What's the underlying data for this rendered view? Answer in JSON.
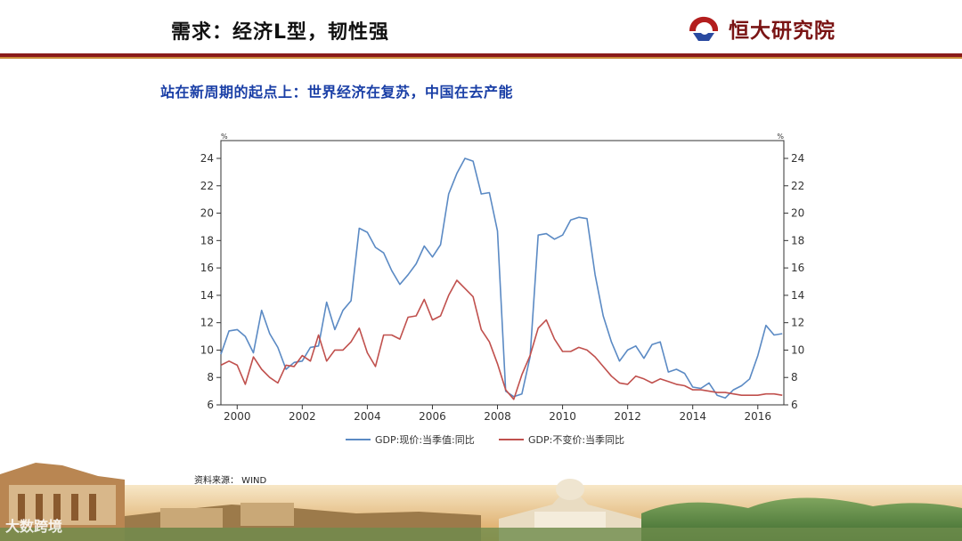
{
  "slide": {
    "title": "需求：经济L型，韧性强",
    "brand": "恒大研究院",
    "subtitle": "站在新周期的起点上：世界经济在复苏，中国在去产能",
    "source": "资料来源：  WIND",
    "watermark": "大数跨境"
  },
  "chart_data": {
    "type": "line",
    "x_unit": "year (quarterly data)",
    "y_unit_left": "%",
    "y_unit_right": "%",
    "xlim": [
      1999.5,
      2016.8
    ],
    "ylim": [
      6,
      24
    ],
    "y_ticks": [
      6,
      8,
      10,
      12,
      14,
      16,
      18,
      20,
      22,
      24
    ],
    "x_ticks": [
      2000,
      2002,
      2004,
      2006,
      2008,
      2010,
      2012,
      2014,
      2016
    ],
    "grid": false,
    "legend_position": "bottom",
    "colors": {
      "s1": "#5b8ac4",
      "s2": "#c0504d"
    },
    "series": [
      {
        "name": "GDP:现价:当季值:同比",
        "points": [
          [
            1999.5,
            9.7
          ],
          [
            1999.75,
            11.4
          ],
          [
            2000.0,
            11.5
          ],
          [
            2000.25,
            11.0
          ],
          [
            2000.5,
            9.8
          ],
          [
            2000.75,
            12.9
          ],
          [
            2001.0,
            11.2
          ],
          [
            2001.25,
            10.2
          ],
          [
            2001.5,
            8.6
          ],
          [
            2001.75,
            9.1
          ],
          [
            2002.0,
            9.2
          ],
          [
            2002.25,
            10.2
          ],
          [
            2002.5,
            10.3
          ],
          [
            2002.75,
            13.5
          ],
          [
            2003.0,
            11.5
          ],
          [
            2003.25,
            12.9
          ],
          [
            2003.5,
            13.6
          ],
          [
            2003.75,
            18.9
          ],
          [
            2004.0,
            18.6
          ],
          [
            2004.25,
            17.5
          ],
          [
            2004.5,
            17.1
          ],
          [
            2004.75,
            15.8
          ],
          [
            2005.0,
            14.8
          ],
          [
            2005.25,
            15.5
          ],
          [
            2005.5,
            16.3
          ],
          [
            2005.75,
            17.6
          ],
          [
            2006.0,
            16.8
          ],
          [
            2006.25,
            17.7
          ],
          [
            2006.5,
            21.4
          ],
          [
            2006.75,
            22.9
          ],
          [
            2007.0,
            24.0
          ],
          [
            2007.25,
            23.8
          ],
          [
            2007.5,
            21.4
          ],
          [
            2007.75,
            21.5
          ],
          [
            2008.0,
            18.7
          ],
          [
            2008.25,
            7.0
          ],
          [
            2008.5,
            6.6
          ],
          [
            2008.75,
            6.8
          ],
          [
            2009.0,
            9.5
          ],
          [
            2009.25,
            18.4
          ],
          [
            2009.5,
            18.5
          ],
          [
            2009.75,
            18.1
          ],
          [
            2010.0,
            18.4
          ],
          [
            2010.25,
            19.5
          ],
          [
            2010.5,
            19.7
          ],
          [
            2010.75,
            19.6
          ],
          [
            2011.0,
            15.5
          ],
          [
            2011.25,
            12.5
          ],
          [
            2011.5,
            10.6
          ],
          [
            2011.75,
            9.2
          ],
          [
            2012.0,
            10.0
          ],
          [
            2012.25,
            10.3
          ],
          [
            2012.5,
            9.4
          ],
          [
            2012.75,
            10.4
          ],
          [
            2013.0,
            10.6
          ],
          [
            2013.25,
            8.4
          ],
          [
            2013.5,
            8.6
          ],
          [
            2013.75,
            8.3
          ],
          [
            2014.0,
            7.3
          ],
          [
            2014.25,
            7.2
          ],
          [
            2014.5,
            7.6
          ],
          [
            2014.75,
            6.7
          ],
          [
            2015.0,
            6.5
          ],
          [
            2015.25,
            7.1
          ],
          [
            2015.5,
            7.4
          ],
          [
            2015.75,
            7.9
          ],
          [
            2016.0,
            9.6
          ],
          [
            2016.25,
            11.8
          ],
          [
            2016.5,
            11.1
          ],
          [
            2016.75,
            11.2
          ]
        ]
      },
      {
        "name": "GDP:不变价:当季同比",
        "points": [
          [
            1999.5,
            8.9
          ],
          [
            1999.75,
            9.2
          ],
          [
            2000.0,
            8.9
          ],
          [
            2000.25,
            7.5
          ],
          [
            2000.5,
            9.5
          ],
          [
            2000.75,
            8.6
          ],
          [
            2001.0,
            8.0
          ],
          [
            2001.25,
            7.6
          ],
          [
            2001.5,
            8.9
          ],
          [
            2001.75,
            8.8
          ],
          [
            2002.0,
            9.6
          ],
          [
            2002.25,
            9.2
          ],
          [
            2002.5,
            11.1
          ],
          [
            2002.75,
            9.2
          ],
          [
            2003.0,
            10.0
          ],
          [
            2003.25,
            10.0
          ],
          [
            2003.5,
            10.6
          ],
          [
            2003.75,
            11.6
          ],
          [
            2004.0,
            9.8
          ],
          [
            2004.25,
            8.8
          ],
          [
            2004.5,
            11.1
          ],
          [
            2004.75,
            11.1
          ],
          [
            2005.0,
            10.8
          ],
          [
            2005.25,
            12.4
          ],
          [
            2005.5,
            12.5
          ],
          [
            2005.75,
            13.7
          ],
          [
            2006.0,
            12.2
          ],
          [
            2006.25,
            12.5
          ],
          [
            2006.5,
            14.0
          ],
          [
            2006.75,
            15.1
          ],
          [
            2007.0,
            14.5
          ],
          [
            2007.25,
            13.9
          ],
          [
            2007.5,
            11.5
          ],
          [
            2007.75,
            10.6
          ],
          [
            2008.0,
            9.0
          ],
          [
            2008.25,
            7.1
          ],
          [
            2008.5,
            6.4
          ],
          [
            2008.75,
            8.2
          ],
          [
            2009.0,
            9.6
          ],
          [
            2009.25,
            11.6
          ],
          [
            2009.5,
            12.2
          ],
          [
            2009.75,
            10.8
          ],
          [
            2010.0,
            9.9
          ],
          [
            2010.25,
            9.9
          ],
          [
            2010.5,
            10.2
          ],
          [
            2010.75,
            10.0
          ],
          [
            2011.0,
            9.5
          ],
          [
            2011.25,
            8.8
          ],
          [
            2011.5,
            8.1
          ],
          [
            2011.75,
            7.6
          ],
          [
            2012.0,
            7.5
          ],
          [
            2012.25,
            8.1
          ],
          [
            2012.5,
            7.9
          ],
          [
            2012.75,
            7.6
          ],
          [
            2013.0,
            7.9
          ],
          [
            2013.25,
            7.7
          ],
          [
            2013.5,
            7.5
          ],
          [
            2013.75,
            7.4
          ],
          [
            2014.0,
            7.1
          ],
          [
            2014.25,
            7.1
          ],
          [
            2014.5,
            7.0
          ],
          [
            2014.75,
            6.9
          ],
          [
            2015.0,
            6.9
          ],
          [
            2015.25,
            6.8
          ],
          [
            2015.5,
            6.7
          ],
          [
            2015.75,
            6.7
          ],
          [
            2016.0,
            6.7
          ],
          [
            2016.25,
            6.8
          ],
          [
            2016.5,
            6.8
          ],
          [
            2016.75,
            6.7
          ]
        ]
      }
    ]
  }
}
